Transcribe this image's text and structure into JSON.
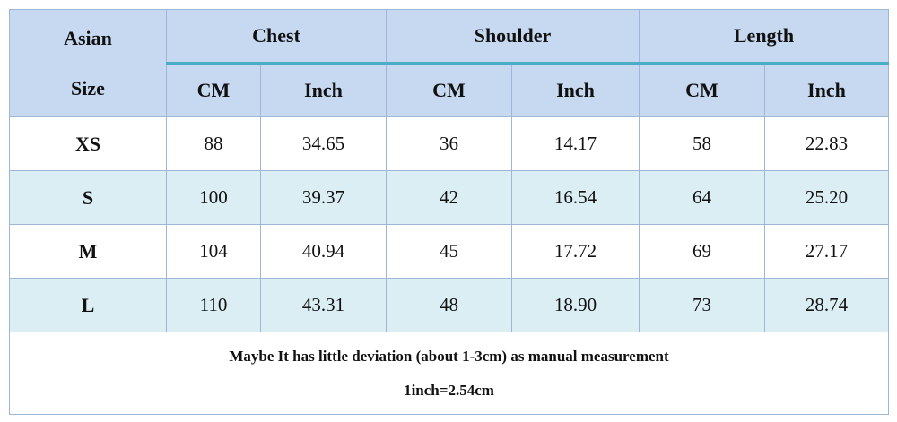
{
  "table": {
    "corner": [
      "Asian",
      "Size"
    ],
    "groups": [
      "Chest",
      "Shoulder",
      "Length"
    ],
    "units": [
      "CM",
      "Inch",
      "CM",
      "Inch",
      "CM",
      "Inch"
    ],
    "rows": [
      [
        "XS",
        "88",
        "34.65",
        "36",
        "14.17",
        "58",
        "22.83"
      ],
      [
        "S",
        "100",
        "39.37",
        "42",
        "16.54",
        "64",
        "25.20"
      ],
      [
        "M",
        "104",
        "40.94",
        "45",
        "17.72",
        "69",
        "27.17"
      ],
      [
        "L",
        "110",
        "43.31",
        "48",
        "18.90",
        "73",
        "28.74"
      ]
    ],
    "notes": [
      "Maybe It has little deviation (about 1-3cm) as manual measurement",
      "1inch=2.54cm"
    ]
  }
}
